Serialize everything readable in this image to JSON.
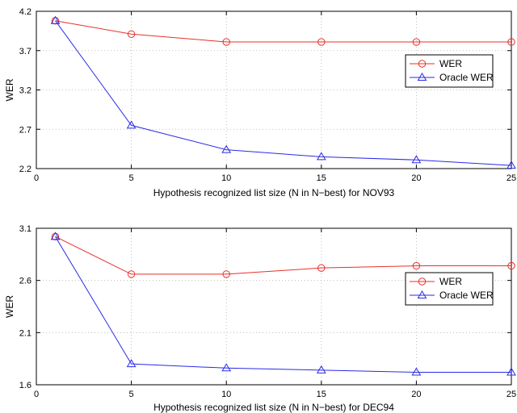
{
  "chart_data": [
    {
      "type": "line",
      "id": "nov93",
      "xlabel": "Hypothesis recognized list size (N in N−best) for NOV93",
      "ylabel": "WER",
      "xlim": [
        0,
        25
      ],
      "ylim": [
        2.2,
        4.2
      ],
      "xticks": [
        0,
        5,
        10,
        15,
        20,
        25
      ],
      "yticks": [
        2.2,
        2.7,
        3.2,
        3.7,
        4.2
      ],
      "ytick_labels": [
        "2.2",
        "2.7",
        "3.2",
        "3.7",
        "4.2"
      ],
      "grid": true,
      "legend_position": "right",
      "x": [
        1,
        5,
        10,
        15,
        20,
        25
      ],
      "series": [
        {
          "name": "WER",
          "color": "#e8302a",
          "marker": "circle",
          "values": [
            4.08,
            3.91,
            3.81,
            3.81,
            3.81,
            3.81
          ]
        },
        {
          "name": "Oracle WER",
          "color": "#2a2ae8",
          "marker": "triangle",
          "values": [
            4.08,
            2.75,
            2.44,
            2.35,
            2.31,
            2.24
          ]
        }
      ]
    },
    {
      "type": "line",
      "id": "dec94",
      "xlabel": "Hypothesis recognized list size (N in N−best) for DEC94",
      "ylabel": "WER",
      "xlim": [
        0,
        25
      ],
      "ylim": [
        1.6,
        3.1
      ],
      "xticks": [
        0,
        5,
        10,
        15,
        20,
        25
      ],
      "yticks": [
        1.6,
        2.1,
        2.6,
        3.1
      ],
      "ytick_labels": [
        "1.6",
        "2.1",
        "2.6",
        "3.1"
      ],
      "grid": true,
      "legend_position": "right",
      "x": [
        1,
        5,
        10,
        15,
        20,
        25
      ],
      "series": [
        {
          "name": "WER",
          "color": "#e8302a",
          "marker": "circle",
          "values": [
            3.02,
            2.66,
            2.66,
            2.72,
            2.74,
            2.74
          ]
        },
        {
          "name": "Oracle WER",
          "color": "#2a2ae8",
          "marker": "triangle",
          "values": [
            3.02,
            1.8,
            1.76,
            1.74,
            1.72,
            1.72
          ]
        }
      ]
    }
  ]
}
